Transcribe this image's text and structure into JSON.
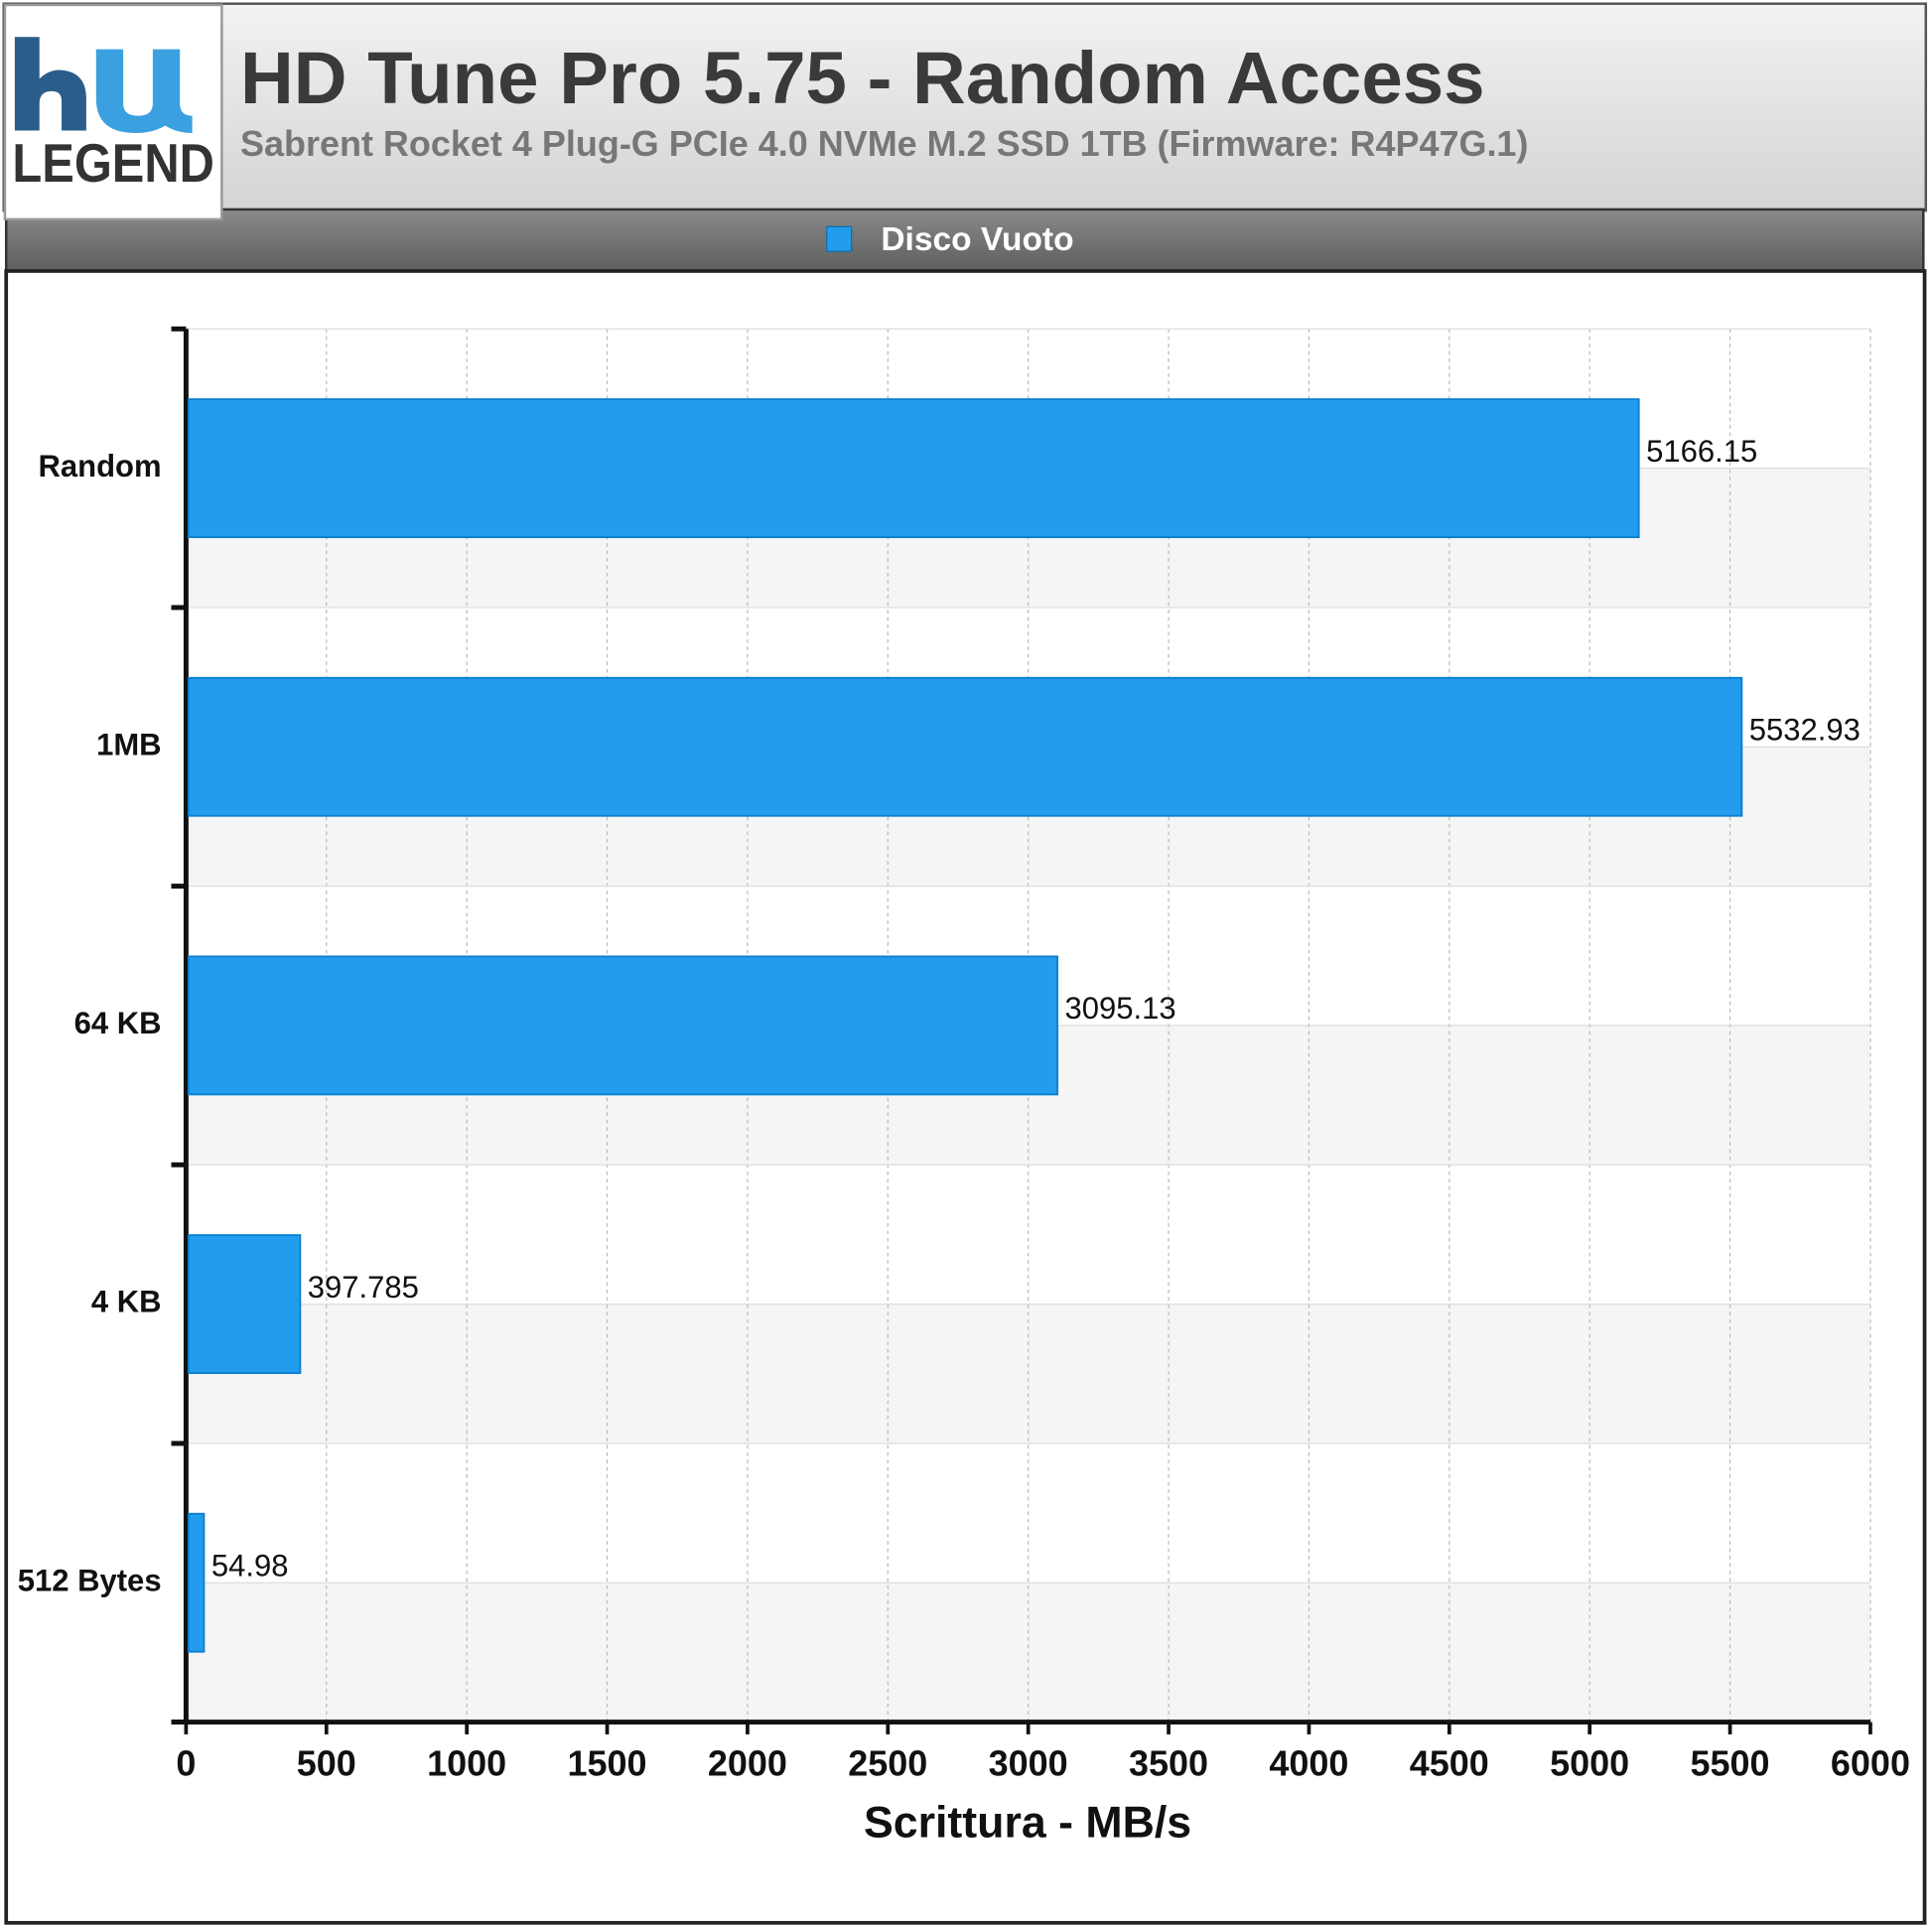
{
  "logo": "LEGEND",
  "chart_data": {
    "type": "bar",
    "orientation": "horizontal",
    "title": "HD Tune Pro 5.75 - Random Access",
    "subtitle": "Sabrent Rocket 4 Plug-G PCIe 4.0 NVMe M.2 SSD 1TB (Firmware: R4P47G.1)",
    "categories": [
      "Random",
      "1MB",
      "64 KB",
      "4 KB",
      "512 Bytes"
    ],
    "series": [
      {
        "name": "Disco Vuoto",
        "color": "#229ded",
        "values": [
          5166.15,
          5532.93,
          3095.13,
          397.785,
          54.98
        ]
      }
    ],
    "xlabel": "Scrittura - MB/s",
    "xlim": [
      0,
      6000
    ],
    "xticks": [
      0,
      500,
      1000,
      1500,
      2000,
      2500,
      3000,
      3500,
      4000,
      4500,
      5000,
      5500,
      6000
    ],
    "grid": true,
    "legend": "top"
  }
}
